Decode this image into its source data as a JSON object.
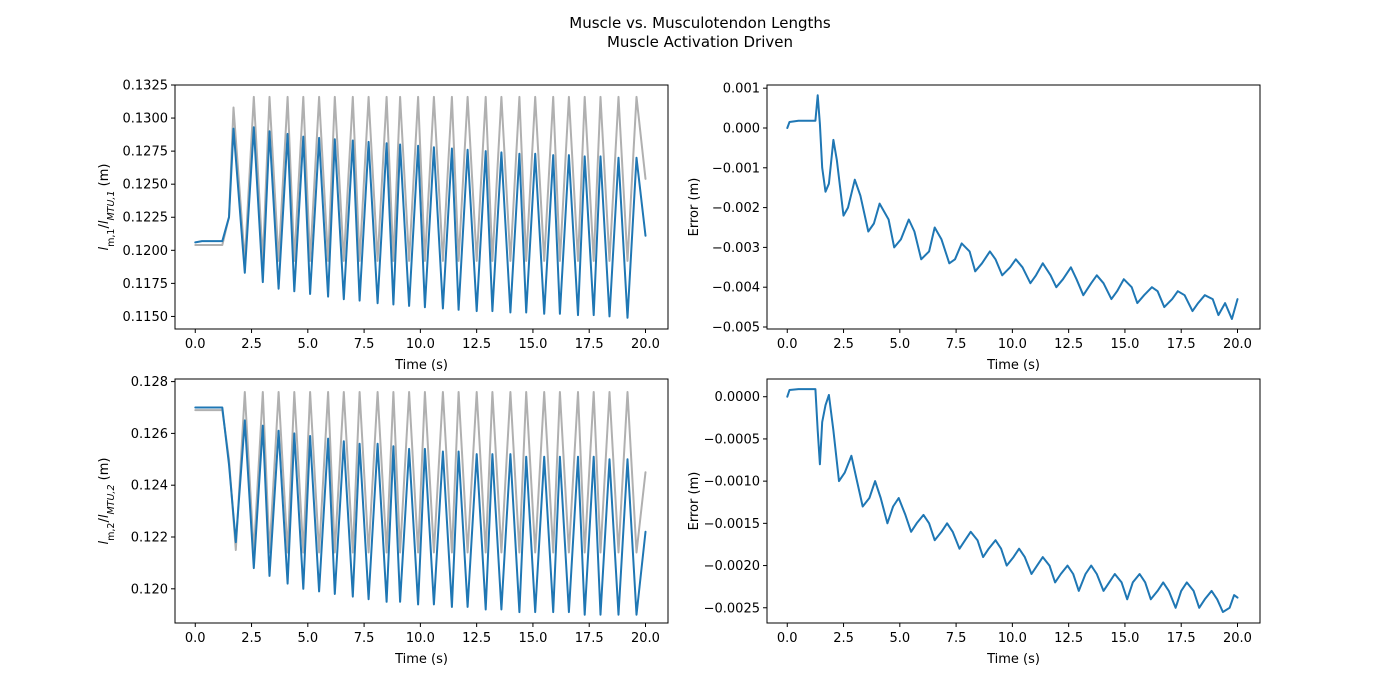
{
  "figure": {
    "title_line1": "Muscle vs. Musculotendon Lengths",
    "title_line2": "Muscle Activation Driven"
  },
  "colors": {
    "muscle": "#1f77b4",
    "musculotendon": "#b0b0b0",
    "axis": "#000000"
  },
  "chart_data": [
    {
      "type": "line",
      "position": "top-left",
      "xlabel": "Time (s)",
      "ylabel": {
        "symbol": "l",
        "sub1": "m,1",
        "sep": "/",
        "sub2": "MTU,1",
        "unit": "(m)"
      },
      "xlim": [
        -0.9,
        21
      ],
      "ylim": [
        0.11405,
        0.1325
      ],
      "xticks": [
        0.0,
        2.5,
        5.0,
        7.5,
        10.0,
        12.5,
        15.0,
        17.5,
        20.0
      ],
      "xtick_labels": [
        "0.0",
        "2.5",
        "5.0",
        "7.5",
        "10.0",
        "12.5",
        "15.0",
        "17.5",
        "20.0"
      ],
      "yticks": [
        0.115,
        0.1175,
        0.12,
        0.1225,
        0.125,
        0.1275,
        0.13,
        0.1325
      ],
      "ytick_labels": [
        "0.1150",
        "0.1175",
        "0.1200",
        "0.1225",
        "0.1250",
        "0.1275",
        "0.1300",
        "0.1325"
      ],
      "grid": false,
      "x": [
        0,
        0.3,
        1.2,
        1.5,
        1.7,
        2.2,
        2.6,
        3.0,
        3.3,
        3.7,
        4.1,
        4.4,
        4.8,
        5.1,
        5.5,
        5.9,
        6.2,
        6.6,
        7.0,
        7.3,
        7.7,
        8.1,
        8.5,
        8.8,
        9.1,
        9.5,
        9.9,
        10.2,
        10.6,
        11.0,
        11.4,
        11.7,
        12.1,
        12.5,
        12.9,
        13.2,
        13.6,
        14.0,
        14.4,
        14.7,
        15.1,
        15.5,
        15.9,
        16.2,
        16.6,
        17.0,
        17.3,
        17.7,
        18.0,
        18.4,
        18.8,
        19.2,
        19.6,
        20.0
      ],
      "series": [
        {
          "role": "musculotendon",
          "y": [
            0.1204,
            0.1204,
            0.1204,
            0.1225,
            0.1308,
            0.1192,
            0.1316,
            0.1192,
            0.1316,
            0.1192,
            0.1316,
            0.1192,
            0.1316,
            0.1192,
            0.1316,
            0.1192,
            0.1316,
            0.1192,
            0.1316,
            0.1192,
            0.1316,
            0.1192,
            0.1316,
            0.1192,
            0.1316,
            0.1192,
            0.1316,
            0.1192,
            0.1316,
            0.1192,
            0.1316,
            0.1192,
            0.1316,
            0.1192,
            0.1316,
            0.1192,
            0.1316,
            0.1192,
            0.1316,
            0.1192,
            0.1316,
            0.1192,
            0.1316,
            0.1192,
            0.1316,
            0.1192,
            0.1316,
            0.1192,
            0.1316,
            0.1192,
            0.1316,
            0.1192,
            0.1316,
            0.1254
          ]
        },
        {
          "role": "muscle",
          "y": [
            0.1206,
            0.1207,
            0.1207,
            0.1225,
            0.1292,
            0.1183,
            0.1293,
            0.1176,
            0.129,
            0.1171,
            0.1288,
            0.1169,
            0.1286,
            0.1167,
            0.1285,
            0.1165,
            0.1284,
            0.1163,
            0.1283,
            0.1162,
            0.1282,
            0.116,
            0.1281,
            0.1159,
            0.128,
            0.1158,
            0.1279,
            0.1157,
            0.1278,
            0.1156,
            0.1277,
            0.1155,
            0.1276,
            0.1154,
            0.1275,
            0.1154,
            0.1274,
            0.1153,
            0.1273,
            0.1153,
            0.1273,
            0.1152,
            0.1272,
            0.1152,
            0.1272,
            0.1151,
            0.1271,
            0.1151,
            0.1271,
            0.115,
            0.127,
            0.1149,
            0.127,
            0.1211
          ]
        }
      ]
    },
    {
      "type": "line",
      "position": "top-right",
      "xlabel": "Time (s)",
      "ylabel": {
        "text": "Error (m)"
      },
      "xlim": [
        -0.9,
        21
      ],
      "ylim": [
        -0.00505,
        0.00108
      ],
      "xticks": [
        0.0,
        2.5,
        5.0,
        7.5,
        10.0,
        12.5,
        15.0,
        17.5,
        20.0
      ],
      "xtick_labels": [
        "0.0",
        "2.5",
        "5.0",
        "7.5",
        "10.0",
        "12.5",
        "15.0",
        "17.5",
        "20.0"
      ],
      "yticks": [
        -0.005,
        -0.004,
        -0.003,
        -0.002,
        -0.001,
        0.0,
        0.001
      ],
      "ytick_labels": [
        "−0.005",
        "−0.004",
        "−0.003",
        "−0.002",
        "−0.001",
        "0.000",
        "0.001"
      ],
      "grid": false,
      "x": [
        0,
        0.1,
        0.5,
        1.0,
        1.25,
        1.35,
        1.45,
        1.55,
        1.7,
        1.85,
        2.05,
        2.2,
        2.5,
        2.7,
        3.0,
        3.25,
        3.6,
        3.85,
        4.1,
        4.5,
        4.75,
        5.05,
        5.4,
        5.65,
        5.95,
        6.3,
        6.55,
        6.85,
        7.2,
        7.45,
        7.75,
        8.1,
        8.35,
        8.65,
        9.0,
        9.25,
        9.55,
        9.9,
        10.15,
        10.45,
        10.8,
        11.05,
        11.35,
        11.7,
        11.95,
        12.25,
        12.6,
        12.85,
        13.15,
        13.5,
        13.75,
        14.05,
        14.4,
        14.65,
        14.95,
        15.3,
        15.55,
        15.85,
        16.2,
        16.45,
        16.75,
        17.1,
        17.35,
        17.65,
        18.0,
        18.25,
        18.55,
        18.9,
        19.15,
        19.45,
        19.75,
        20.0
      ],
      "series": [
        {
          "role": "error",
          "y": [
            0.0,
            0.00015,
            0.00018,
            0.00018,
            0.00018,
            0.00082,
            0.0001,
            -0.001,
            -0.0016,
            -0.0014,
            -0.0003,
            -0.0008,
            -0.0022,
            -0.002,
            -0.0013,
            -0.0017,
            -0.0026,
            -0.0024,
            -0.0019,
            -0.0023,
            -0.003,
            -0.0028,
            -0.0023,
            -0.0026,
            -0.0033,
            -0.0031,
            -0.0025,
            -0.0028,
            -0.0034,
            -0.0033,
            -0.0029,
            -0.0031,
            -0.0036,
            -0.0034,
            -0.0031,
            -0.0033,
            -0.0037,
            -0.0035,
            -0.0033,
            -0.0035,
            -0.0039,
            -0.0037,
            -0.0034,
            -0.0037,
            -0.004,
            -0.0038,
            -0.0035,
            -0.0038,
            -0.0042,
            -0.0039,
            -0.0037,
            -0.0039,
            -0.0043,
            -0.0041,
            -0.0038,
            -0.004,
            -0.0044,
            -0.0042,
            -0.004,
            -0.0041,
            -0.0045,
            -0.0043,
            -0.0041,
            -0.0042,
            -0.0046,
            -0.0044,
            -0.0042,
            -0.0043,
            -0.0047,
            -0.0044,
            -0.0048,
            -0.0043
          ]
        }
      ]
    },
    {
      "type": "line",
      "position": "bottom-left",
      "xlabel": "Time (s)",
      "ylabel": {
        "symbol": "l",
        "sub1": "m,2",
        "sep": "/",
        "sub2": "MTU,2",
        "unit": "(m)"
      },
      "xlim": [
        -0.9,
        21
      ],
      "ylim": [
        0.11868,
        0.1281
      ],
      "xticks": [
        0.0,
        2.5,
        5.0,
        7.5,
        10.0,
        12.5,
        15.0,
        17.5,
        20.0
      ],
      "xtick_labels": [
        "0.0",
        "2.5",
        "5.0",
        "7.5",
        "10.0",
        "12.5",
        "15.0",
        "17.5",
        "20.0"
      ],
      "yticks": [
        0.12,
        0.122,
        0.124,
        0.126,
        0.128
      ],
      "ytick_labels": [
        "0.120",
        "0.122",
        "0.124",
        "0.126",
        "0.128"
      ],
      "grid": false,
      "x": [
        0,
        0.3,
        1.2,
        1.5,
        1.8,
        2.2,
        2.6,
        3.0,
        3.3,
        3.7,
        4.1,
        4.4,
        4.8,
        5.1,
        5.5,
        5.9,
        6.2,
        6.6,
        7.0,
        7.3,
        7.7,
        8.1,
        8.5,
        8.8,
        9.1,
        9.5,
        9.9,
        10.2,
        10.6,
        11.0,
        11.4,
        11.7,
        12.1,
        12.5,
        12.9,
        13.2,
        13.6,
        14.0,
        14.4,
        14.7,
        15.1,
        15.5,
        15.9,
        16.2,
        16.6,
        17.0,
        17.3,
        17.7,
        18.0,
        18.4,
        18.8,
        19.2,
        19.6,
        20.0
      ],
      "series": [
        {
          "role": "musculotendon",
          "y": [
            0.1269,
            0.1269,
            0.1269,
            0.125,
            0.1215,
            0.1276,
            0.1214,
            0.1276,
            0.1214,
            0.1276,
            0.1214,
            0.1276,
            0.1214,
            0.1276,
            0.1214,
            0.1276,
            0.1214,
            0.1276,
            0.1214,
            0.1276,
            0.1214,
            0.1276,
            0.1214,
            0.1276,
            0.1214,
            0.1276,
            0.1214,
            0.1276,
            0.1214,
            0.1276,
            0.1214,
            0.1276,
            0.1214,
            0.1276,
            0.1214,
            0.1276,
            0.1214,
            0.1276,
            0.1214,
            0.1276,
            0.1214,
            0.1276,
            0.1214,
            0.1276,
            0.1214,
            0.1276,
            0.1214,
            0.1276,
            0.1214,
            0.1276,
            0.1214,
            0.1276,
            0.1214,
            0.1245
          ]
        },
        {
          "role": "muscle",
          "y": [
            0.127,
            0.127,
            0.127,
            0.1248,
            0.1218,
            0.1265,
            0.1208,
            0.1263,
            0.1205,
            0.1261,
            0.1202,
            0.126,
            0.12,
            0.1259,
            0.1199,
            0.1258,
            0.1198,
            0.1257,
            0.1197,
            0.1256,
            0.1196,
            0.1256,
            0.1195,
            0.1255,
            0.1195,
            0.1254,
            0.1194,
            0.1254,
            0.1194,
            0.1253,
            0.1193,
            0.1253,
            0.1193,
            0.1252,
            0.1192,
            0.1252,
            0.1192,
            0.1252,
            0.1191,
            0.1251,
            0.1191,
            0.1251,
            0.1191,
            0.1251,
            0.1191,
            0.1251,
            0.119,
            0.1251,
            0.119,
            0.125,
            0.119,
            0.125,
            0.119,
            0.1222
          ]
        }
      ]
    },
    {
      "type": "line",
      "position": "bottom-right",
      "xlabel": "Time (s)",
      "ylabel": {
        "text": "Error (m)"
      },
      "xlim": [
        -0.9,
        21
      ],
      "ylim": [
        -0.0026805,
        0.00021
      ],
      "xticks": [
        0.0,
        2.5,
        5.0,
        7.5,
        10.0,
        12.5,
        15.0,
        17.5,
        20.0
      ],
      "xtick_labels": [
        "0.0",
        "2.5",
        "5.0",
        "7.5",
        "10.0",
        "12.5",
        "15.0",
        "17.5",
        "20.0"
      ],
      "yticks": [
        -0.0025,
        -0.002,
        -0.0015,
        -0.001,
        -0.0005,
        0.0
      ],
      "ytick_labels": [
        "−0.0025",
        "−0.0020",
        "−0.0015",
        "−0.0010",
        "−0.0005",
        "0.0000"
      ],
      "grid": false,
      "x": [
        0,
        0.1,
        0.5,
        1.0,
        1.25,
        1.35,
        1.45,
        1.55,
        1.7,
        1.85,
        2.05,
        2.3,
        2.55,
        2.85,
        3.1,
        3.35,
        3.65,
        3.9,
        4.15,
        4.45,
        4.7,
        4.95,
        5.25,
        5.5,
        5.75,
        6.05,
        6.3,
        6.55,
        6.85,
        7.1,
        7.35,
        7.65,
        7.9,
        8.15,
        8.45,
        8.7,
        8.95,
        9.25,
        9.5,
        9.75,
        10.05,
        10.3,
        10.55,
        10.85,
        11.1,
        11.35,
        11.65,
        11.9,
        12.15,
        12.45,
        12.7,
        12.95,
        13.25,
        13.5,
        13.75,
        14.05,
        14.3,
        14.55,
        14.85,
        15.1,
        15.35,
        15.65,
        15.9,
        16.15,
        16.45,
        16.7,
        16.95,
        17.25,
        17.5,
        17.75,
        18.05,
        18.3,
        18.55,
        18.85,
        19.1,
        19.35,
        19.65,
        19.85,
        20.0
      ],
      "series": [
        {
          "role": "error",
          "y": [
            0.0,
            8e-05,
            9e-05,
            9e-05,
            9e-05,
            -0.0004,
            -0.0008,
            -0.0003,
            -0.0001,
            2e-05,
            -0.0004,
            -0.001,
            -0.0009,
            -0.0007,
            -0.001,
            -0.0013,
            -0.0012,
            -0.001,
            -0.0012,
            -0.0015,
            -0.0013,
            -0.0012,
            -0.0014,
            -0.0016,
            -0.0015,
            -0.0014,
            -0.0015,
            -0.0017,
            -0.0016,
            -0.0015,
            -0.0016,
            -0.0018,
            -0.0017,
            -0.0016,
            -0.0017,
            -0.0019,
            -0.0018,
            -0.0017,
            -0.0018,
            -0.002,
            -0.0019,
            -0.0018,
            -0.0019,
            -0.0021,
            -0.002,
            -0.0019,
            -0.002,
            -0.0022,
            -0.0021,
            -0.002,
            -0.0021,
            -0.0023,
            -0.0021,
            -0.002,
            -0.0021,
            -0.0023,
            -0.0022,
            -0.0021,
            -0.0022,
            -0.0024,
            -0.0022,
            -0.0021,
            -0.0022,
            -0.0024,
            -0.0023,
            -0.0022,
            -0.0023,
            -0.0025,
            -0.0023,
            -0.0022,
            -0.0023,
            -0.0025,
            -0.0024,
            -0.0023,
            -0.0024,
            -0.00255,
            -0.0025,
            -0.00235,
            -0.00238
          ]
        }
      ]
    }
  ]
}
